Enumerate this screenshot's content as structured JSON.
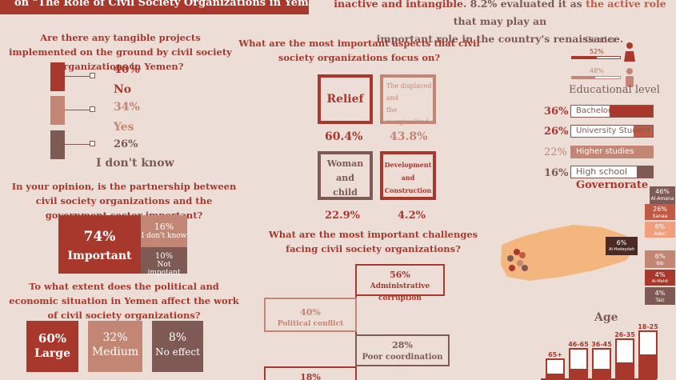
{
  "header": {
    "title": "on \"The Role of Civil Society Organizations in Yemen\"",
    "intro_line1_a": "inactive and intangible.",
    "intro_line1_pct": "8.2%",
    "intro_line1_b": "evaluated it as",
    "intro_line1_hl": "the active role",
    "intro_line1_c": "that may play an",
    "intro_line2": "important role in the country's renaissance."
  },
  "tangible": {
    "question": "Are there any tangible projects implemented on the ground by civil society organizations in Yemen?",
    "items": [
      {
        "pct": "40%",
        "label": "No",
        "color": "#a9382c"
      },
      {
        "pct": "34%",
        "label": "Yes",
        "color": "#c48674"
      },
      {
        "pct": "26%",
        "label": "I don't know",
        "color": "#7f5a54"
      }
    ]
  },
  "partnership": {
    "question": "In your opinion, is the partnership between civil society organizations and the government sector important?",
    "important_pct": "74%",
    "important_label": "Important",
    "dontknow_pct": "16%",
    "dontknow_label": "I don't know",
    "notimp_pct": "10%",
    "notimp_label": "Not impotant"
  },
  "situation": {
    "question": "To what extent does the political and economic situation in Yemen affect the work of civil society organizations?",
    "items": [
      {
        "pct": "60%",
        "label": "Large",
        "color": "#a9382c"
      },
      {
        "pct": "32%",
        "label": "Medium",
        "color": "#c48674"
      },
      {
        "pct": "8%",
        "label": "No effect",
        "color": "#7f5a54"
      }
    ]
  },
  "aspects": {
    "question": "What are the most important aspects that civil society organizations focus on?",
    "relief_label": "Relief",
    "relief_pct": "60.4%",
    "displaced_label_1": "The displaced",
    "displaced_label_2": "and",
    "displaced_label_3": "the marginalized",
    "displaced_pct": "43.8%",
    "woman_label_1": "Woman",
    "woman_label_2": "and",
    "woman_label_3": "child",
    "woman_pct": "22.9%",
    "dev_label_1": "Development",
    "dev_label_2": "and",
    "dev_label_3": "Construction",
    "dev_pct": "4.2%"
  },
  "challenges": {
    "question": "What are the most important challenges facing civil society organizations?",
    "items": [
      {
        "pct": "56%",
        "label": "Administrative corruption"
      },
      {
        "pct": "40%",
        "label": "Political conflict"
      },
      {
        "pct": "28%",
        "label": "Poor coordination"
      },
      {
        "pct": "18%",
        "label": ""
      }
    ]
  },
  "gender": {
    "title": "Gender",
    "female_pct": "52%",
    "male_pct": "48%",
    "female_value": 52,
    "male_value": 48
  },
  "education": {
    "title": "Educational level",
    "items": [
      {
        "pct": "36%",
        "label": "Bachelor",
        "value": 36
      },
      {
        "pct": "26%",
        "label": "University Student",
        "value": 26
      },
      {
        "pct": "22%",
        "label": "Higher studies",
        "value": 22
      },
      {
        "pct": "16%",
        "label": "High school",
        "value": 16
      }
    ]
  },
  "governorate": {
    "title": "Governorate",
    "items": [
      {
        "pct": "46%",
        "name": "Al-Amana"
      },
      {
        "pct": "26%",
        "name": "Sanaa"
      },
      {
        "pct": "8%",
        "name": "Aden"
      },
      {
        "pct": "6%",
        "name": "Al-Hodeydah"
      },
      {
        "pct": "6%",
        "name": "Ibb"
      },
      {
        "pct": "4%",
        "name": "Al-Mahit"
      },
      {
        "pct": "4%",
        "name": "Taiz"
      }
    ]
  },
  "age": {
    "title": "Age",
    "items": [
      {
        "label": "65+",
        "value": 20
      },
      {
        "label": "46-65",
        "value": 30
      },
      {
        "label": "36-45",
        "value": 30
      },
      {
        "label": "26-35",
        "value": 40
      },
      {
        "label": "18-25",
        "value": 50
      }
    ]
  }
}
